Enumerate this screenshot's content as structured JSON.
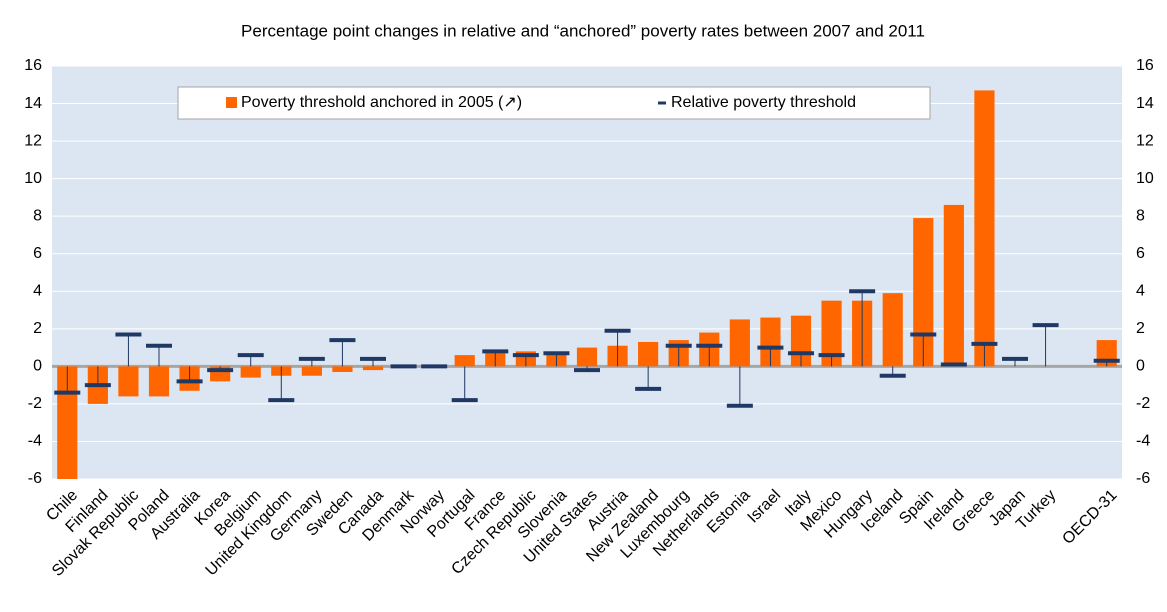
{
  "chart_data": {
    "type": "bar",
    "title": "Percentage point changes in relative and “anchored” poverty rates between 2007 and 2011",
    "categories": [
      "Chile",
      "Finland",
      "Slovak Republic",
      "Poland",
      "Australia",
      "Korea",
      "Belgium",
      "United Kingdom",
      "Germany",
      "Sweden",
      "Canada",
      "Denmark",
      "Norway",
      "Portugal",
      "France",
      "Czech Republic",
      "Slovenia",
      "United States",
      "Austria",
      "New Zealand",
      "Luxembourg",
      "Netherlands",
      "Estonia",
      "Israel",
      "Italy",
      "Mexico",
      "Hungary",
      "Iceland",
      "Spain",
      "Ireland",
      "Greece",
      "Japan",
      "Turkey",
      null,
      "OECD-31"
    ],
    "series": [
      {
        "name": "Poverty threshold anchored in 2005 (↗)",
        "style": "bar",
        "color": "#ff6600",
        "values": [
          -6,
          -2.0,
          -1.6,
          -1.6,
          -1.3,
          -0.8,
          -0.6,
          -0.5,
          -0.5,
          -0.3,
          -0.2,
          0.0,
          0.0,
          0.6,
          0.7,
          0.8,
          0.7,
          1.0,
          1.1,
          1.3,
          1.4,
          1.8,
          2.5,
          2.6,
          2.7,
          3.5,
          3.5,
          3.9,
          7.9,
          8.6,
          14.7,
          null,
          null,
          null,
          1.4
        ]
      },
      {
        "name": "Relative poverty threshold",
        "style": "dash",
        "color": "#1f3864",
        "values": [
          -1.4,
          -1.0,
          1.7,
          1.1,
          -0.8,
          -0.2,
          0.6,
          -1.8,
          0.4,
          1.4,
          0.4,
          0.0,
          0.0,
          -1.8,
          0.8,
          0.6,
          0.7,
          -0.2,
          1.9,
          -1.2,
          1.1,
          1.1,
          -2.1,
          1.0,
          0.7,
          0.6,
          4.0,
          -0.5,
          1.7,
          0.1,
          1.2,
          0.4,
          2.2,
          null,
          0.3
        ]
      }
    ],
    "ylim": [
      -6,
      16
    ],
    "yticks": [
      -6,
      -4,
      -2,
      0,
      2,
      4,
      6,
      8,
      10,
      12,
      14,
      16
    ],
    "grid": true,
    "right_axis": true
  }
}
